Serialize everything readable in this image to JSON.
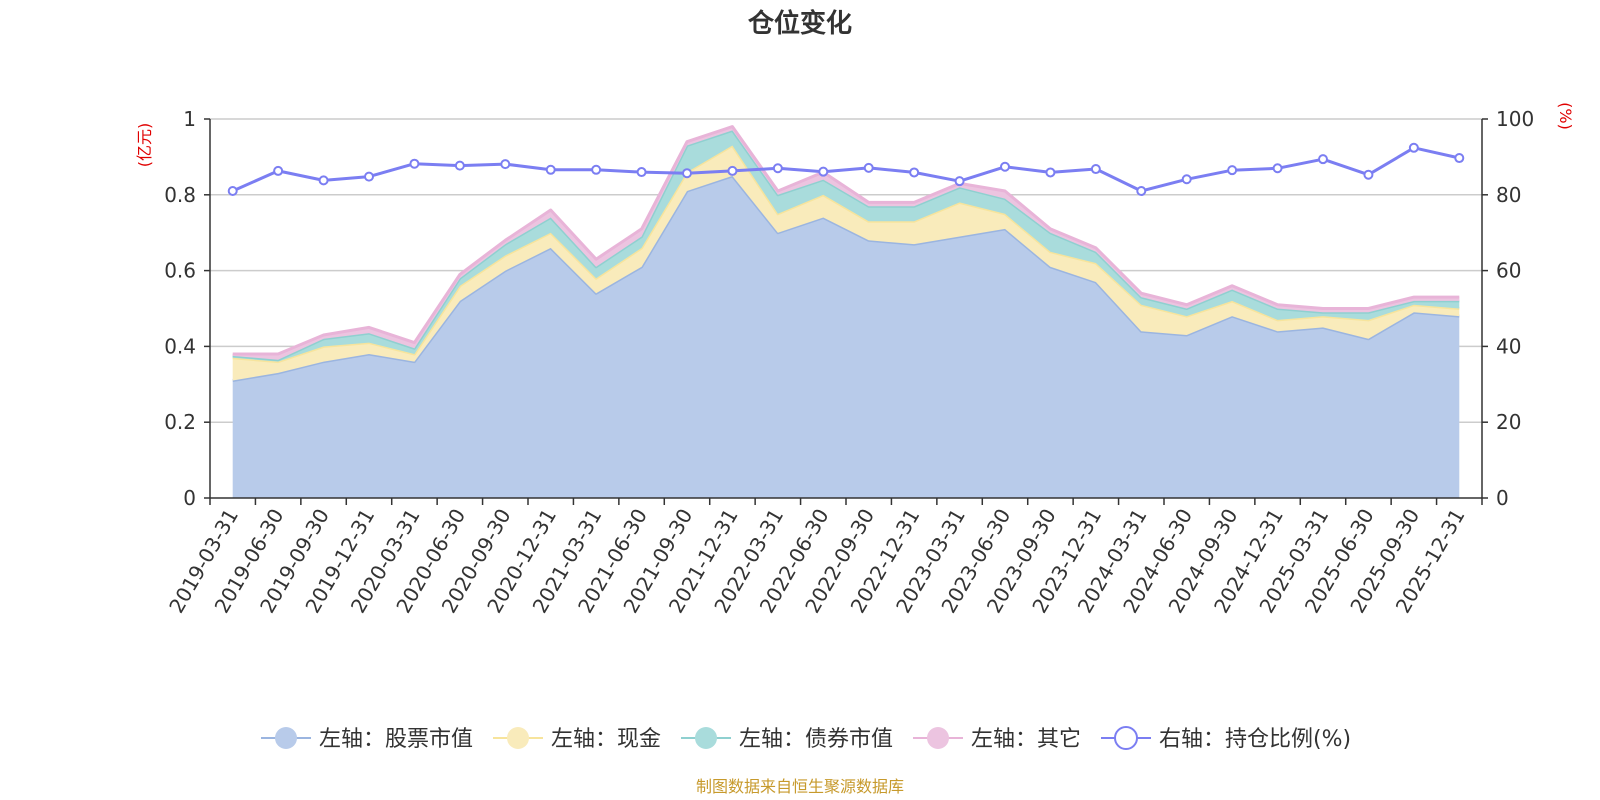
{
  "chart_data": {
    "type": "area",
    "title": "仓位变化",
    "left_unit": "(亿元)",
    "right_unit": "(%)",
    "categories": [
      "2019-03-31",
      "2019-06-30",
      "2019-09-30",
      "2019-12-31",
      "2020-03-31",
      "2020-06-30",
      "2020-09-30",
      "2020-12-31",
      "2021-03-31",
      "2021-06-30",
      "2021-09-30",
      "2021-12-31",
      "2022-03-31",
      "2022-06-30",
      "2022-09-30",
      "2022-12-31",
      "2023-03-31",
      "2023-06-30",
      "2023-09-30",
      "2023-12-31",
      "2024-03-31",
      "2024-06-30",
      "2024-09-30",
      "2024-12-31",
      "2025-03-31",
      "2025-06-30",
      "2025-09-30",
      "2025-12-31"
    ],
    "y_left": {
      "min": 0,
      "max": 1,
      "ticks": [
        "0",
        "0.2",
        "0.4",
        "0.6",
        "0.8",
        "1"
      ]
    },
    "y_right": {
      "min": 0,
      "max": 100,
      "ticks": [
        "0",
        "20",
        "40",
        "60",
        "80",
        "100"
      ]
    },
    "stacked_series": [
      {
        "name": "左轴：股票市值",
        "color": "#9bb5e0",
        "fill": "#b8cbea",
        "values": [
          0.31,
          0.33,
          0.36,
          0.38,
          0.36,
          0.52,
          0.6,
          0.66,
          0.54,
          0.61,
          0.81,
          0.85,
          0.7,
          0.74,
          0.68,
          0.67,
          0.69,
          0.71,
          0.61,
          0.57,
          0.44,
          0.43,
          0.48,
          0.44,
          0.45,
          0.42,
          0.49,
          0.48
        ]
      },
      {
        "name": "左轴：现金",
        "color": "#f7e49c",
        "fill": "#f9ebbb",
        "values": [
          0.06,
          0.03,
          0.04,
          0.03,
          0.02,
          0.04,
          0.04,
          0.04,
          0.04,
          0.05,
          0.05,
          0.08,
          0.05,
          0.06,
          0.05,
          0.06,
          0.09,
          0.04,
          0.04,
          0.05,
          0.07,
          0.05,
          0.04,
          0.03,
          0.03,
          0.05,
          0.02,
          0.02
        ]
      },
      {
        "name": "左轴：债券市值",
        "color": "#8fd0d0",
        "fill": "#a9dcdc",
        "values": [
          0.005,
          0.005,
          0.02,
          0.025,
          0.015,
          0.02,
          0.03,
          0.04,
          0.03,
          0.03,
          0.07,
          0.04,
          0.05,
          0.04,
          0.04,
          0.04,
          0.04,
          0.04,
          0.05,
          0.03,
          0.02,
          0.02,
          0.03,
          0.03,
          0.01,
          0.02,
          0.01,
          0.02
        ]
      },
      {
        "name": "左轴：其它",
        "color": "#e8b4d8",
        "fill": "#ecc4e0",
        "values": [
          0.005,
          0.015,
          0.01,
          0.015,
          0.015,
          0.01,
          0.01,
          0.02,
          0.02,
          0.02,
          0.01,
          0.01,
          0.01,
          0.02,
          0.01,
          0.01,
          0.01,
          0.02,
          0.01,
          0.01,
          0.01,
          0.01,
          0.01,
          0.01,
          0.01,
          0.01,
          0.01,
          0.01
        ]
      }
    ],
    "line_series": {
      "name": "右轴：持仓比例(%)",
      "color": "#7b7ef2",
      "values": [
        81,
        86.3,
        83.8,
        84.8,
        88.2,
        87.7,
        88.1,
        86.6,
        86.6,
        86.0,
        85.7,
        86.3,
        87.0,
        86.1,
        87.1,
        85.9,
        83.6,
        87.4,
        85.9,
        86.8,
        81.0,
        84.1,
        86.5,
        87.0,
        89.4,
        85.3,
        92.4,
        89.7
      ]
    },
    "legend_position": "bottom",
    "grid": true
  },
  "footer": {
    "source": "制图数据来自恒生聚源数据库"
  }
}
